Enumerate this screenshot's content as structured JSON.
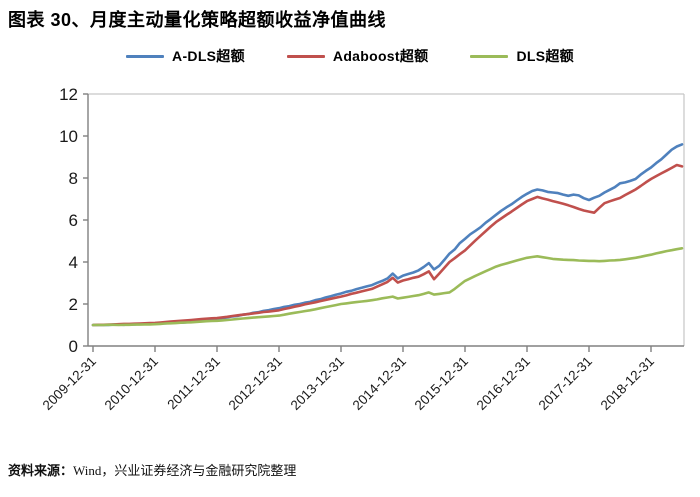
{
  "page": {
    "title": "图表 30、月度主动量化策略超额收益净值曲线",
    "source_label": "资料来源：",
    "source_text": "Wind，兴业证券经济与金融研究院整理"
  },
  "colors": {
    "series_blue": "#4F81BD",
    "series_red": "#C0504D",
    "series_green": "#9BBB59",
    "axis": "#808080",
    "frame": "#C6C6C6",
    "tick_text": "#1a1a1a"
  },
  "chart_data": {
    "type": "line",
    "title": "图表 30、月度主动量化策略超额收益净值曲线",
    "xlabel": "",
    "ylabel": "",
    "ylim": [
      0,
      12
    ],
    "yticks": [
      0,
      2,
      4,
      6,
      8,
      10,
      12
    ],
    "grid": false,
    "legend_position": "top",
    "x_start": "2009-12",
    "x_frequency": "monthly",
    "x_tick_labels": [
      "2009-12-31",
      "2010-12-31",
      "2011-12-31",
      "2012-12-31",
      "2013-12-31",
      "2014-12-31",
      "2015-12-31",
      "2016-12-31",
      "2017-12-31",
      "2018-12-31"
    ],
    "series": [
      {
        "name": "A-DLS超额",
        "color": "#4F81BD",
        "values": [
          1.0,
          1.0,
          1.01,
          1.0,
          1.02,
          1.02,
          1.01,
          1.03,
          1.03,
          1.05,
          1.04,
          1.06,
          1.07,
          1.09,
          1.08,
          1.1,
          1.12,
          1.11,
          1.13,
          1.16,
          1.18,
          1.21,
          1.23,
          1.27,
          1.28,
          1.33,
          1.36,
          1.41,
          1.44,
          1.49,
          1.52,
          1.58,
          1.61,
          1.67,
          1.71,
          1.76,
          1.8,
          1.86,
          1.9,
          1.96,
          2.0,
          2.06,
          2.1,
          2.18,
          2.23,
          2.31,
          2.37,
          2.44,
          2.5,
          2.58,
          2.63,
          2.71,
          2.77,
          2.84,
          2.9,
          3.01,
          3.1,
          3.22,
          3.45,
          3.22,
          3.35,
          3.43,
          3.5,
          3.6,
          3.76,
          3.95,
          3.65,
          3.82,
          4.1,
          4.4,
          4.6,
          4.9,
          5.1,
          5.32,
          5.48,
          5.65,
          5.87,
          6.05,
          6.25,
          6.44,
          6.6,
          6.75,
          6.93,
          7.1,
          7.25,
          7.38,
          7.45,
          7.41,
          7.34,
          7.31,
          7.28,
          7.21,
          7.15,
          7.21,
          7.17,
          7.04,
          6.95,
          7.06,
          7.15,
          7.31,
          7.44,
          7.56,
          7.75,
          7.79,
          7.86,
          7.95,
          8.16,
          8.34,
          8.5,
          8.71,
          8.89,
          9.12,
          9.35,
          9.5,
          9.6
        ]
      },
      {
        "name": "Adaboost超额",
        "color": "#C0504D",
        "values": [
          1.0,
          1.01,
          1.01,
          1.02,
          1.03,
          1.04,
          1.05,
          1.05,
          1.06,
          1.07,
          1.08,
          1.09,
          1.1,
          1.12,
          1.14,
          1.16,
          1.18,
          1.2,
          1.22,
          1.24,
          1.26,
          1.28,
          1.3,
          1.32,
          1.33,
          1.36,
          1.39,
          1.43,
          1.46,
          1.49,
          1.52,
          1.55,
          1.58,
          1.62,
          1.64,
          1.67,
          1.7,
          1.76,
          1.81,
          1.87,
          1.92,
          1.98,
          2.03,
          2.08,
          2.14,
          2.19,
          2.25,
          2.3,
          2.35,
          2.41,
          2.48,
          2.54,
          2.6,
          2.66,
          2.72,
          2.83,
          2.94,
          3.05,
          3.25,
          3.02,
          3.12,
          3.18,
          3.25,
          3.3,
          3.42,
          3.55,
          3.18,
          3.45,
          3.72,
          4.0,
          4.18,
          4.37,
          4.55,
          4.79,
          5.02,
          5.25,
          5.47,
          5.69,
          5.9,
          6.07,
          6.24,
          6.4,
          6.57,
          6.74,
          6.9,
          7.0,
          7.1,
          7.03,
          6.97,
          6.9,
          6.84,
          6.77,
          6.7,
          6.62,
          6.53,
          6.45,
          6.4,
          6.35,
          6.58,
          6.8,
          6.89,
          6.97,
          7.05,
          7.19,
          7.32,
          7.45,
          7.62,
          7.79,
          7.95,
          8.09,
          8.22,
          8.35,
          8.48,
          8.62,
          8.55
        ]
      },
      {
        "name": "DLS超额",
        "color": "#9BBB59",
        "values": [
          1.0,
          1.0,
          1.0,
          1.01,
          1.01,
          1.0,
          1.01,
          1.01,
          1.02,
          1.02,
          1.03,
          1.03,
          1.04,
          1.05,
          1.07,
          1.08,
          1.09,
          1.11,
          1.12,
          1.13,
          1.15,
          1.16,
          1.18,
          1.19,
          1.2,
          1.22,
          1.24,
          1.26,
          1.29,
          1.31,
          1.33,
          1.35,
          1.37,
          1.39,
          1.41,
          1.43,
          1.45,
          1.49,
          1.54,
          1.58,
          1.62,
          1.66,
          1.7,
          1.75,
          1.8,
          1.85,
          1.9,
          1.95,
          2.0,
          2.03,
          2.06,
          2.09,
          2.12,
          2.15,
          2.18,
          2.22,
          2.27,
          2.31,
          2.35,
          2.26,
          2.3,
          2.34,
          2.38,
          2.42,
          2.48,
          2.55,
          2.45,
          2.48,
          2.52,
          2.55,
          2.72,
          2.91,
          3.1,
          3.22,
          3.34,
          3.45,
          3.56,
          3.67,
          3.78,
          3.86,
          3.93,
          4.0,
          4.07,
          4.14,
          4.2,
          4.24,
          4.27,
          4.23,
          4.19,
          4.15,
          4.13,
          4.11,
          4.1,
          4.09,
          4.07,
          4.06,
          4.05,
          4.05,
          4.04,
          4.05,
          4.07,
          4.08,
          4.1,
          4.13,
          4.16,
          4.2,
          4.25,
          4.3,
          4.35,
          4.41,
          4.46,
          4.52,
          4.56,
          4.61,
          4.65
        ]
      }
    ]
  }
}
